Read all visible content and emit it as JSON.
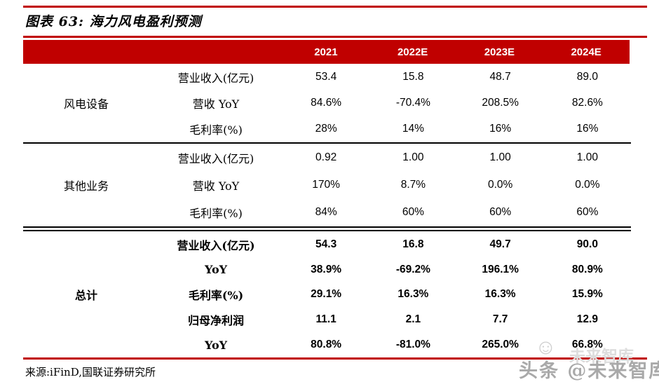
{
  "figure": {
    "title": "图表 63: 海力风电盈利预测",
    "source": "来源:iFinD,国联证券研究所"
  },
  "colors": {
    "accent_red": "#c00000",
    "header_text": "#ffffff",
    "body_text": "#000000",
    "watermark_gray": "#a9a9a9"
  },
  "watermark": {
    "smiley_icon": "☺",
    "ghost_text": "未来智库",
    "main_text": "头条 @未来智库"
  },
  "table": {
    "columns": [
      "2021",
      "2022E",
      "2023E",
      "2024E"
    ],
    "sections": [
      {
        "group": "风电设备",
        "rows": [
          {
            "label": "营业收入(亿元)",
            "values": [
              "53.4",
              "15.8",
              "48.7",
              "89.0"
            ]
          },
          {
            "label": "营收 YoY",
            "values": [
              "84.6%",
              "-70.4%",
              "208.5%",
              "82.6%"
            ]
          },
          {
            "label": "毛利率(%)",
            "values": [
              "28%",
              "14%",
              "16%",
              "16%"
            ]
          }
        ]
      },
      {
        "group": "其他业务",
        "rows": [
          {
            "label": "营业收入(亿元)",
            "values": [
              "0.92",
              "1.00",
              "1.00",
              "1.00"
            ]
          },
          {
            "label": "营收 YoY",
            "values": [
              "170%",
              "8.7%",
              "0.0%",
              "0.0%"
            ]
          },
          {
            "label": "毛利率(%)",
            "values": [
              "84%",
              "60%",
              "60%",
              "60%"
            ]
          }
        ]
      },
      {
        "group": "总计",
        "rows": [
          {
            "label": "营业收入(亿元)",
            "values": [
              "54.3",
              "16.8",
              "49.7",
              "90.0"
            ]
          },
          {
            "label": "YoY",
            "values": [
              "38.9%",
              "-69.2%",
              "196.1%",
              "80.9%"
            ]
          },
          {
            "label": "毛利率(%)",
            "values": [
              "29.1%",
              "16.3%",
              "16.3%",
              "15.9%"
            ]
          },
          {
            "label": "归母净利润",
            "values": [
              "11.1",
              "2.1",
              "7.7",
              "12.9"
            ]
          },
          {
            "label": "YoY",
            "values": [
              "80.8%",
              "-81.0%",
              "265.0%",
              "66.8%"
            ]
          }
        ]
      }
    ]
  },
  "chart_data": {
    "type": "table",
    "title": "海力风电盈利预测",
    "categories": [
      "2021",
      "2022E",
      "2023E",
      "2024E"
    ],
    "series": [
      {
        "name": "风电设备-营业收入(亿元)",
        "values": [
          53.4,
          15.8,
          48.7,
          89.0
        ]
      },
      {
        "name": "风电设备-营收YoY(%)",
        "values": [
          84.6,
          -70.4,
          208.5,
          82.6
        ]
      },
      {
        "name": "风电设备-毛利率(%)",
        "values": [
          28,
          14,
          16,
          16
        ]
      },
      {
        "name": "其他业务-营业收入(亿元)",
        "values": [
          0.92,
          1.0,
          1.0,
          1.0
        ]
      },
      {
        "name": "其他业务-营收YoY(%)",
        "values": [
          170,
          8.7,
          0.0,
          0.0
        ]
      },
      {
        "name": "其他业务-毛利率(%)",
        "values": [
          84,
          60,
          60,
          60
        ]
      },
      {
        "name": "总计-营业收入(亿元)",
        "values": [
          54.3,
          16.8,
          49.7,
          90.0
        ]
      },
      {
        "name": "总计-YoY(%)",
        "values": [
          38.9,
          -69.2,
          196.1,
          80.9
        ]
      },
      {
        "name": "总计-毛利率(%)",
        "values": [
          29.1,
          16.3,
          16.3,
          15.9
        ]
      },
      {
        "name": "总计-归母净利润(亿元)",
        "values": [
          11.1,
          2.1,
          7.7,
          12.9
        ]
      },
      {
        "name": "总计-归母净利润YoY(%)",
        "values": [
          80.8,
          -81.0,
          265.0,
          66.8
        ]
      }
    ],
    "layout": {
      "grid": "horizontal rules only",
      "header_background": "#c00000",
      "total_section_bold": true
    }
  }
}
